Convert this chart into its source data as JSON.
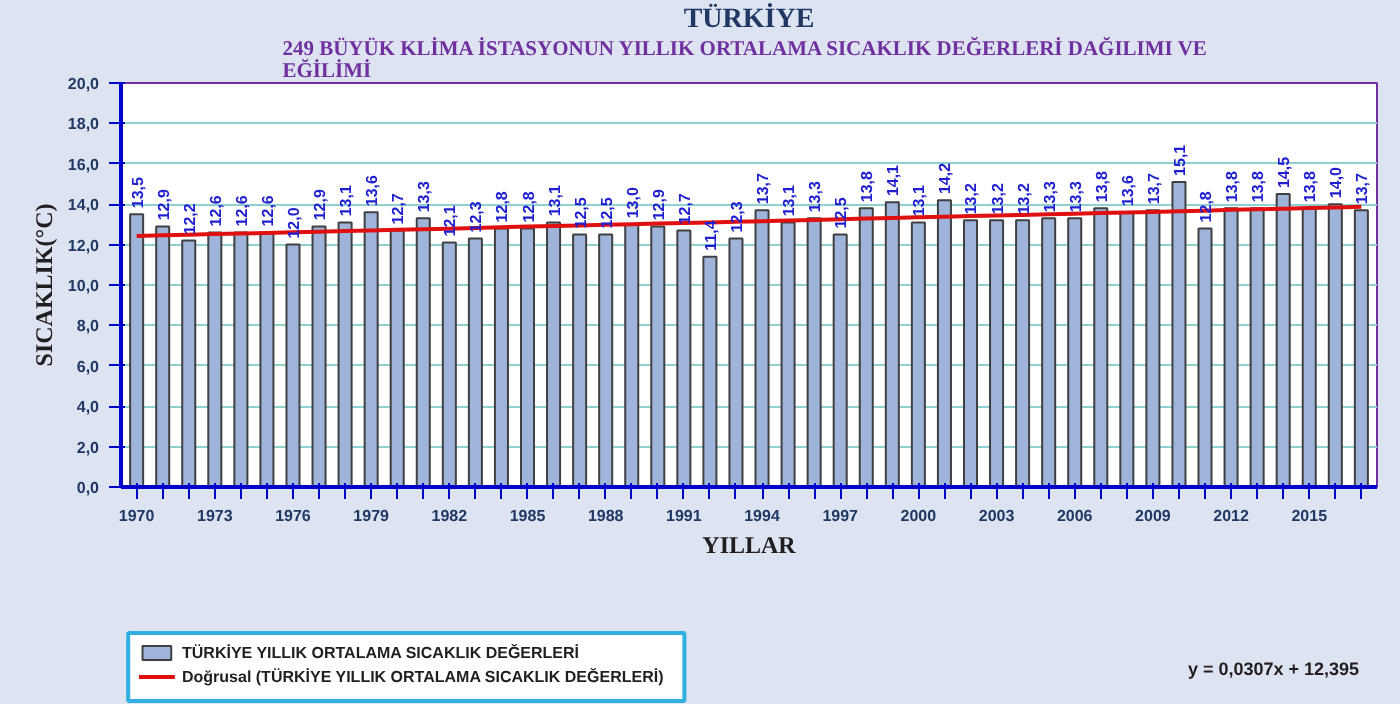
{
  "chart_data": {
    "type": "bar",
    "title": "TÜRKİYE",
    "subtitle": "249 BÜYÜK KLİMA İSTASYONUN YILLIK ORTALAMA SICAKLIK DEĞERLERİ DAĞILIMI  VE\nEĞİLİMİ",
    "xlabel": "YILLAR",
    "ylabel": "SICAKLIK(°C)",
    "categories": [
      "1970",
      null,
      null,
      "1973",
      null,
      null,
      "1976",
      null,
      null,
      "1979",
      null,
      null,
      "1982",
      null,
      null,
      "1985",
      null,
      null,
      "1988",
      null,
      null,
      "1991",
      null,
      null,
      "1994",
      null,
      null,
      "1997",
      null,
      null,
      "2000",
      null,
      null,
      "2003",
      null,
      null,
      "2006",
      null,
      null,
      "2009",
      null,
      null,
      "2012",
      null,
      null,
      "2015",
      null,
      null
    ],
    "series": [
      {
        "name": "TÜRKİYE YILLIK ORTALAMA  SICAKLIK DEĞERLERİ",
        "color": "#9fb4da",
        "values": [
          13.5,
          12.9,
          12.2,
          12.6,
          12.6,
          12.6,
          12.0,
          12.9,
          13.1,
          13.6,
          12.7,
          13.3,
          12.1,
          12.3,
          12.8,
          12.8,
          13.1,
          12.5,
          12.5,
          13.0,
          12.9,
          12.7,
          11.4,
          12.3,
          13.7,
          13.1,
          13.3,
          12.5,
          13.8,
          14.1,
          13.1,
          14.2,
          13.2,
          13.2,
          13.2,
          13.3,
          13.3,
          13.8,
          13.6,
          13.7,
          15.1,
          12.8,
          13.8,
          13.8,
          14.5,
          13.8,
          14.0,
          13.7
        ],
        "value_labels": [
          "13,5",
          "12,9",
          "12,2",
          "12,6",
          "12,6",
          "12,6",
          "12,0",
          "12,9",
          "13,1",
          "13,6",
          "12,7",
          "13,3",
          "12,1",
          "12,3",
          "12,8",
          "12,8",
          "13,1",
          "12,5",
          "12,5",
          "13,0",
          "12,9",
          "12,7",
          "11,4",
          "12,3",
          "13,7",
          "13,1",
          "13,3",
          "12,5",
          "13,8",
          "14,1",
          "13,1",
          "14,2",
          "13,2",
          "13,2",
          "13,2",
          "13,3",
          "13,3",
          "13,8",
          "13,6",
          "13,7",
          "15,1",
          "12,8",
          "13,8",
          "13,8",
          "14,5",
          "13,8",
          "14,0",
          "13,7"
        ]
      },
      {
        "name": "Doğrusal (TÜRKİYE YILLIK ORTALAMA  SICAKLIK DEĞERLERİ)",
        "type": "line",
        "color": "#e01010",
        "values": [
          12.43,
          12.46,
          12.49,
          12.52,
          12.55,
          12.58,
          12.61,
          12.64,
          12.67,
          12.7,
          12.73,
          12.76,
          12.79,
          12.82,
          12.86,
          12.89,
          12.92,
          12.95,
          12.98,
          13.01,
          13.04,
          13.07,
          13.1,
          13.13,
          13.16,
          13.19,
          13.22,
          13.25,
          13.29,
          13.32,
          13.35,
          13.38,
          13.41,
          13.44,
          13.47,
          13.5,
          13.53,
          13.56,
          13.59,
          13.62,
          13.65,
          13.68,
          13.72,
          13.75,
          13.78,
          13.81,
          13.84,
          13.87
        ]
      }
    ],
    "ylim": [
      0,
      20
    ],
    "yticks": [
      {
        "value": 0,
        "label": "0,0"
      },
      {
        "value": 2,
        "label": "2,0"
      },
      {
        "value": 4,
        "label": "4,0"
      },
      {
        "value": 6,
        "label": "6,0"
      },
      {
        "value": 8,
        "label": "8,0"
      },
      {
        "value": 10,
        "label": "10,0"
      },
      {
        "value": 12,
        "label": "12,0"
      },
      {
        "value": 14,
        "label": "14,0"
      },
      {
        "value": 16,
        "label": "16,0"
      },
      {
        "value": 18,
        "label": "18,0"
      },
      {
        "value": 20,
        "label": "20,0"
      }
    ],
    "grid": "y",
    "legend": "bottom left",
    "annotations": [
      "y = 0,0307x + 12,395"
    ]
  }
}
